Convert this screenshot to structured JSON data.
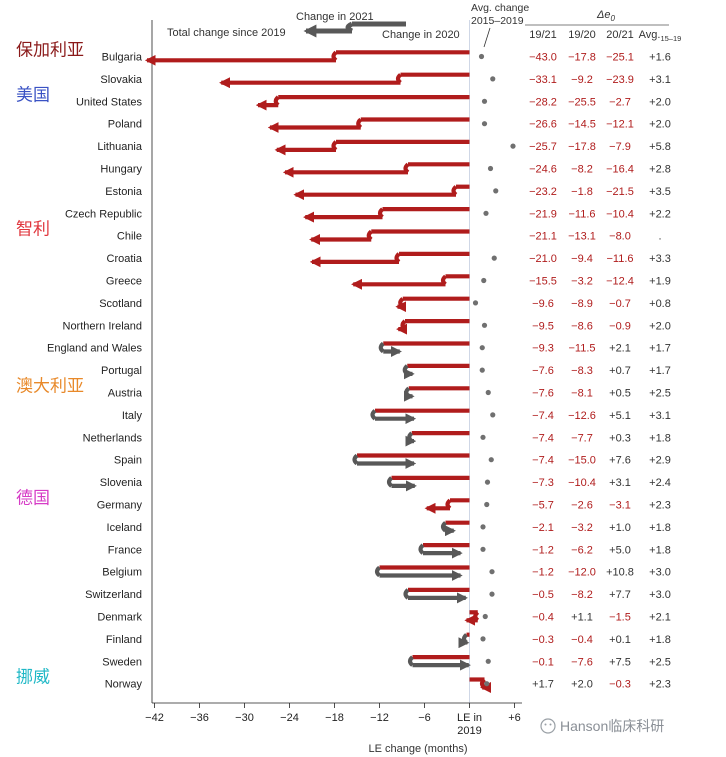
{
  "legend": {
    "change_2021": "Change in 2021",
    "change_2020": "Change in 2020",
    "total_change": "Total change since 2019",
    "avg_change_line1": "Avg. change",
    "avg_change_line2": "2015–2019"
  },
  "table_header": {
    "delta_label": "Δe",
    "delta_subscript": "0",
    "col_19_21": "19/21",
    "col_19_20": "19/20",
    "col_20_21": "20/21",
    "col_avg": "Avg.",
    "col_avg_subscript": "15–19"
  },
  "chinese_labels": [
    {
      "text": "保加利亚",
      "color": "#8b1a1a",
      "row": 0
    },
    {
      "text": "美国",
      "color": "#3a52c4",
      "row": 2
    },
    {
      "text": "智利",
      "color": "#e0363d",
      "row": 8
    },
    {
      "text": "澳大利亚",
      "color": "#e8892a",
      "row": 15
    },
    {
      "text": "德国",
      "color": "#d63cc6",
      "row": 20
    },
    {
      "text": "挪威",
      "color": "#1fb8c6",
      "row": 28
    }
  ],
  "watermark": "Hanson临床科研",
  "colors": {
    "red": "#b01c1c",
    "gray": "#585858",
    "table_red": "#b01c1c",
    "dot": "#707070"
  },
  "chart_data": {
    "type": "bar",
    "xlabel": "LE change (months)",
    "xlim": [
      -44,
      8
    ],
    "xticks": [
      -42,
      -36,
      -30,
      -24,
      -18,
      -12,
      -6,
      0,
      6
    ],
    "xtick_labels": [
      "−42",
      "−36",
      "−30",
      "−24",
      "−18",
      "−12",
      "−6",
      "LE in 2019",
      "+6"
    ],
    "rows": [
      {
        "country": "Bulgaria",
        "d1921": "−43.0",
        "d1920": "−17.8",
        "d2021": "−25.1",
        "avg": "+1.6",
        "c2020": -17.8,
        "total": -43.0,
        "avg_val": 1.6
      },
      {
        "country": "Slovakia",
        "d1921": "−33.1",
        "d1920": "−9.2",
        "d2021": "−23.9",
        "avg": "+3.1",
        "c2020": -9.2,
        "total": -33.1,
        "avg_val": 3.1
      },
      {
        "country": "United States",
        "d1921": "−28.2",
        "d1920": "−25.5",
        "d2021": "−2.7",
        "avg": "+2.0",
        "c2020": -25.5,
        "total": -28.2,
        "avg_val": 2.0
      },
      {
        "country": "Poland",
        "d1921": "−26.6",
        "d1920": "−14.5",
        "d2021": "−12.1",
        "avg": "+2.0",
        "c2020": -14.5,
        "total": -26.6,
        "avg_val": 2.0
      },
      {
        "country": "Lithuania",
        "d1921": "−25.7",
        "d1920": "−17.8",
        "d2021": "−7.9",
        "avg": "+5.8",
        "c2020": -17.8,
        "total": -25.7,
        "avg_val": 5.8
      },
      {
        "country": "Hungary",
        "d1921": "−24.6",
        "d1920": "−8.2",
        "d2021": "−16.4",
        "avg": "+2.8",
        "c2020": -8.2,
        "total": -24.6,
        "avg_val": 2.8
      },
      {
        "country": "Estonia",
        "d1921": "−23.2",
        "d1920": "−1.8",
        "d2021": "−21.5",
        "avg": "+3.5",
        "c2020": -1.8,
        "total": -23.2,
        "avg_val": 3.5
      },
      {
        "country": "Czech Republic",
        "d1921": "−21.9",
        "d1920": "−11.6",
        "d2021": "−10.4",
        "avg": "+2.2",
        "c2020": -11.6,
        "total": -21.9,
        "avg_val": 2.2
      },
      {
        "country": "Chile",
        "d1921": "−21.1",
        "d1920": "−13.1",
        "d2021": "−8.0",
        "avg": ".",
        "c2020": -13.1,
        "total": -21.1,
        "avg_val": null
      },
      {
        "country": "Croatia",
        "d1921": "−21.0",
        "d1920": "−9.4",
        "d2021": "−11.6",
        "avg": "+3.3",
        "c2020": -9.4,
        "total": -21.0,
        "avg_val": 3.3
      },
      {
        "country": "Greece",
        "d1921": "−15.5",
        "d1920": "−3.2",
        "d2021": "−12.4",
        "avg": "+1.9",
        "c2020": -3.2,
        "total": -15.5,
        "avg_val": 1.9
      },
      {
        "country": "Scotland",
        "d1921": "−9.6",
        "d1920": "−8.9",
        "d2021": "−0.7",
        "avg": "+0.8",
        "c2020": -8.9,
        "total": -9.6,
        "avg_val": 0.8
      },
      {
        "country": "Northern Ireland",
        "d1921": "−9.5",
        "d1920": "−8.6",
        "d2021": "−0.9",
        "avg": "+2.0",
        "c2020": -8.6,
        "total": -9.5,
        "avg_val": 2.0
      },
      {
        "country": "England and Wales",
        "d1921": "−9.3",
        "d1920": "−11.5",
        "d2021": "+2.1",
        "avg": "+1.7",
        "c2020": -11.5,
        "total": -9.3,
        "avg_val": 1.7
      },
      {
        "country": "Portugal",
        "d1921": "−7.6",
        "d1920": "−8.3",
        "d2021": "+0.7",
        "avg": "+1.7",
        "c2020": -8.3,
        "total": -7.6,
        "avg_val": 1.7
      },
      {
        "country": "Austria",
        "d1921": "−7.6",
        "d1920": "−8.1",
        "d2021": "+0.5",
        "avg": "+2.5",
        "c2020": -8.1,
        "total": -7.6,
        "avg_val": 2.5
      },
      {
        "country": "Italy",
        "d1921": "−7.4",
        "d1920": "−12.6",
        "d2021": "+5.1",
        "avg": "+3.1",
        "c2020": -12.6,
        "total": -7.4,
        "avg_val": 3.1
      },
      {
        "country": "Netherlands",
        "d1921": "−7.4",
        "d1920": "−7.7",
        "d2021": "+0.3",
        "avg": "+1.8",
        "c2020": -7.7,
        "total": -7.4,
        "avg_val": 1.8
      },
      {
        "country": "Spain",
        "d1921": "−7.4",
        "d1920": "−15.0",
        "d2021": "+7.6",
        "avg": "+2.9",
        "c2020": -15.0,
        "total": -7.4,
        "avg_val": 2.9
      },
      {
        "country": "Slovenia",
        "d1921": "−7.3",
        "d1920": "−10.4",
        "d2021": "+3.1",
        "avg": "+2.4",
        "c2020": -10.4,
        "total": -7.3,
        "avg_val": 2.4
      },
      {
        "country": "Germany",
        "d1921": "−5.7",
        "d1920": "−2.6",
        "d2021": "−3.1",
        "avg": "+2.3",
        "c2020": -2.6,
        "total": -5.7,
        "avg_val": 2.3
      },
      {
        "country": "Iceland",
        "d1921": "−2.1",
        "d1920": "−3.2",
        "d2021": "+1.0",
        "avg": "+1.8",
        "c2020": -3.2,
        "total": -2.1,
        "avg_val": 1.8
      },
      {
        "country": "France",
        "d1921": "−1.2",
        "d1920": "−6.2",
        "d2021": "+5.0",
        "avg": "+1.8",
        "c2020": -6.2,
        "total": -1.2,
        "avg_val": 1.8
      },
      {
        "country": "Belgium",
        "d1921": "−1.2",
        "d1920": "−12.0",
        "d2021": "+10.8",
        "avg": "+3.0",
        "c2020": -12.0,
        "total": -1.2,
        "avg_val": 3.0
      },
      {
        "country": "Switzerland",
        "d1921": "−0.5",
        "d1920": "−8.2",
        "d2021": "+7.7",
        "avg": "+3.0",
        "c2020": -8.2,
        "total": -0.5,
        "avg_val": 3.0
      },
      {
        "country": "Denmark",
        "d1921": "−0.4",
        "d1920": "+1.1",
        "d2021": "−1.5",
        "avg": "+2.1",
        "c2020": 1.1,
        "total": -0.4,
        "avg_val": 2.1
      },
      {
        "country": "Finland",
        "d1921": "−0.3",
        "d1920": "−0.4",
        "d2021": "+0.1",
        "avg": "+1.8",
        "c2020": -0.4,
        "total": -0.3,
        "avg_val": 1.8
      },
      {
        "country": "Sweden",
        "d1921": "−0.1",
        "d1920": "−7.6",
        "d2021": "+7.5",
        "avg": "+2.5",
        "c2020": -7.6,
        "total": -0.1,
        "avg_val": 2.5
      },
      {
        "country": "Norway",
        "d1921": "+1.7",
        "d1920": "+2.0",
        "d2021": "−0.3",
        "avg": "+2.3",
        "c2020": 2.0,
        "total": 1.7,
        "avg_val": 2.3
      }
    ]
  }
}
